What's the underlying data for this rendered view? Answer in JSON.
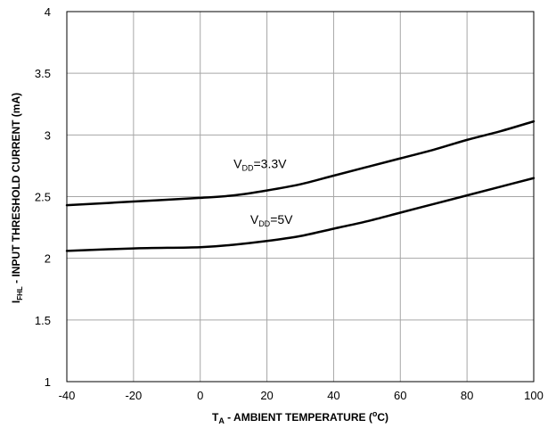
{
  "chart_data": {
    "type": "line",
    "title": "",
    "xlabel": {
      "main": "T",
      "sub": "A",
      "rest": " - AMBIENT TEMPERATURE  (",
      "sup": "o",
      "end": "C)"
    },
    "ylabel": {
      "main": "I",
      "sub": "FHL",
      "rest": " - INPUT THRESHOLD CURRENT (mA)"
    },
    "xlim": [
      -40,
      100
    ],
    "ylim": [
      1,
      4
    ],
    "xticks": [
      -40,
      -20,
      0,
      20,
      40,
      60,
      80,
      100
    ],
    "yticks": [
      1,
      1.5,
      2,
      2.5,
      3,
      3.5,
      4
    ],
    "xtick_labels": [
      "-40",
      "-20",
      "0",
      "20",
      "40",
      "60",
      "80",
      "100"
    ],
    "ytick_labels": [
      "1",
      "1.5",
      "2",
      "2.5",
      "3",
      "3.5",
      "4"
    ],
    "grid": true,
    "series": [
      {
        "label_main": "V",
        "label_sub": "DD",
        "label_rest": "=3.3V",
        "label_at": [
          10,
          2.73
        ],
        "color": "#000000",
        "x": [
          -40,
          -20,
          0,
          10,
          20,
          30,
          40,
          50,
          60,
          70,
          80,
          90,
          100
        ],
        "y": [
          2.43,
          2.46,
          2.49,
          2.51,
          2.55,
          2.6,
          2.67,
          2.74,
          2.81,
          2.88,
          2.96,
          3.03,
          3.11
        ]
      },
      {
        "label_main": "V",
        "label_sub": "DD",
        "label_rest": "=5V",
        "label_at": [
          15,
          2.28
        ],
        "color": "#000000",
        "x": [
          -40,
          -20,
          0,
          10,
          20,
          30,
          40,
          50,
          60,
          70,
          80,
          90,
          100
        ],
        "y": [
          2.06,
          2.08,
          2.09,
          2.11,
          2.14,
          2.18,
          2.24,
          2.3,
          2.37,
          2.44,
          2.51,
          2.58,
          2.65
        ]
      }
    ]
  }
}
